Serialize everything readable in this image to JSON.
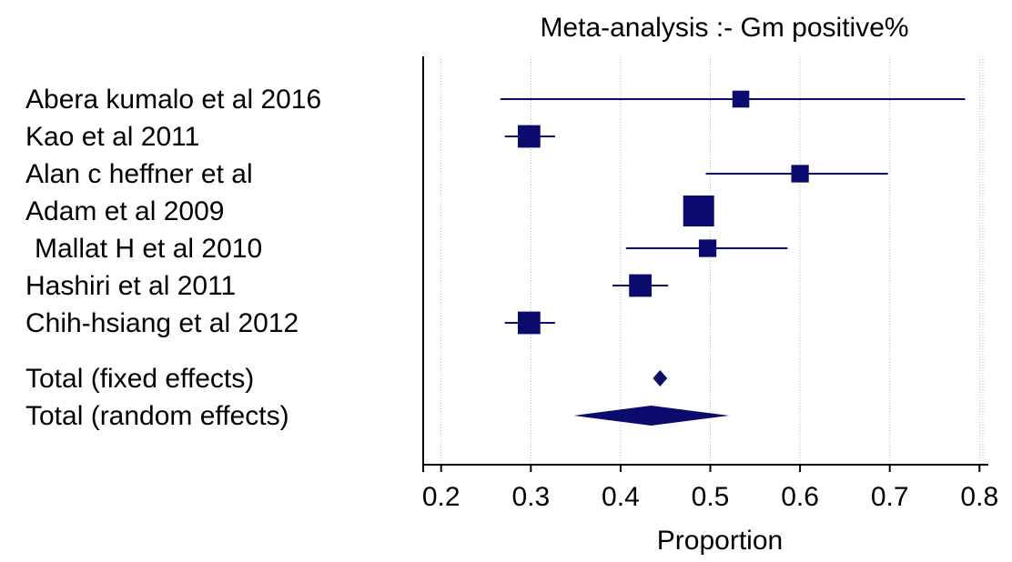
{
  "chart_data": {
    "type": "forest",
    "title": "Meta-analysis :- Gm positive%",
    "xlabel": "Proportion",
    "xlim": [
      0.18,
      0.82
    ],
    "xticks": [
      "0.2",
      "0.3",
      "0.4",
      "0.5",
      "0.6",
      "0.7",
      "0.8"
    ],
    "grid": "vertical-dotted",
    "colors": {
      "marker": "#0b0b6e",
      "axis": "#000000",
      "grid": "#b8b8b8"
    },
    "studies": [
      {
        "label": "Abera kumalo et al 2016",
        "estimate": 0.534,
        "lower": 0.266,
        "upper": 0.784,
        "weight": 0.3
      },
      {
        "label": "Kao et al 2011",
        "estimate": 0.298,
        "lower": 0.271,
        "upper": 0.327,
        "weight": 0.58
      },
      {
        "label": "Alan c heffner et al",
        "estimate": 0.6,
        "lower": 0.495,
        "upper": 0.698,
        "weight": 0.33
      },
      {
        "label": "Adam et al 2009",
        "estimate": 0.487,
        "lower": 0.487,
        "upper": 0.487,
        "weight": 1.0
      },
      {
        "label": "Mallat H et al 2010",
        "estimate": 0.497,
        "lower": 0.406,
        "upper": 0.586,
        "weight": 0.33
      },
      {
        "label": "Hashiri et al 2011",
        "estimate": 0.422,
        "lower": 0.391,
        "upper": 0.453,
        "weight": 0.58
      },
      {
        "label": "Chih-hsiang et al 2012",
        "estimate": 0.298,
        "lower": 0.271,
        "upper": 0.327,
        "weight": 0.58
      }
    ],
    "pooled": [
      {
        "label": "Total (fixed effects)",
        "estimate": 0.444,
        "lower": 0.436,
        "upper": 0.452
      },
      {
        "label": "Total (random effects)",
        "estimate": 0.434,
        "lower": 0.348,
        "upper": 0.521
      }
    ]
  }
}
